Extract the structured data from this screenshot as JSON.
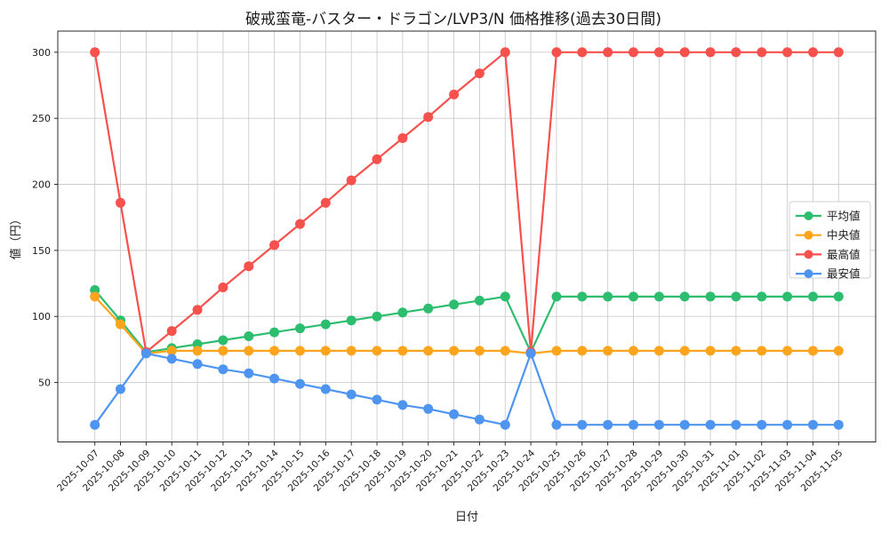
{
  "title": "破戒蛮竜-バスター・ドラゴン/LVP3/N 価格推移(過去30日間)",
  "chart_data": {
    "type": "line",
    "title": "破戒蛮竜-バスター・ドラゴン/LVP3/N 価格推移(過去30日間)",
    "xlabel": "日付",
    "ylabel": "値（円）",
    "x": [
      "2025-10-07",
      "2025-10-08",
      "2025-10-09",
      "2025-10-10",
      "2025-10-11",
      "2025-10-12",
      "2025-10-13",
      "2025-10-14",
      "2025-10-15",
      "2025-10-16",
      "2025-10-17",
      "2025-10-18",
      "2025-10-19",
      "2025-10-20",
      "2025-10-21",
      "2025-10-22",
      "2025-10-23",
      "2025-10-24",
      "2025-10-25",
      "2025-10-26",
      "2025-10-27",
      "2025-10-28",
      "2025-10-29",
      "2025-10-30",
      "2025-10-31",
      "2025-11-01",
      "2025-11-02",
      "2025-11-03",
      "2025-11-04",
      "2025-11-05"
    ],
    "series": [
      {
        "name": "平均値",
        "color": "#2dbd6e",
        "values": [
          120,
          97,
          73,
          76,
          79,
          82,
          85,
          88,
          91,
          94,
          97,
          100,
          103,
          106,
          109,
          112,
          115,
          73,
          115,
          115,
          115,
          115,
          115,
          115,
          115,
          115,
          115,
          115,
          115,
          115
        ]
      },
      {
        "name": "中央値",
        "color": "#ffa51d",
        "values": [
          115,
          94,
          72,
          74,
          74,
          74,
          74,
          74,
          74,
          74,
          74,
          74,
          74,
          74,
          74,
          74,
          74,
          72,
          74,
          74,
          74,
          74,
          74,
          74,
          74,
          74,
          74,
          74,
          74,
          74
        ]
      },
      {
        "name": "最高値",
        "color": "#f6514d",
        "values": [
          300,
          186,
          73,
          89,
          105,
          122,
          138,
          154,
          170,
          186,
          203,
          219,
          235,
          251,
          268,
          284,
          300,
          73,
          300,
          300,
          300,
          300,
          300,
          300,
          300,
          300,
          300,
          300,
          300,
          300
        ]
      },
      {
        "name": "最安値",
        "color": "#4e95f2",
        "values": [
          18,
          45,
          72,
          68,
          64,
          60,
          57,
          53,
          49,
          45,
          41,
          37,
          33,
          30,
          26,
          22,
          18,
          72,
          18,
          18,
          18,
          18,
          18,
          18,
          18,
          18,
          18,
          18,
          18,
          18
        ]
      }
    ],
    "yticks": [
      50,
      100,
      150,
      200,
      250,
      300
    ],
    "ylim": [
      5,
      316
    ],
    "grid": true,
    "legend_position": "right",
    "colors": {
      "grid": "#cccccc",
      "border": "#2a2a2a",
      "text": "#1a1a1a",
      "legend_border": "#d0d0d0",
      "background": "#ffffff"
    }
  }
}
